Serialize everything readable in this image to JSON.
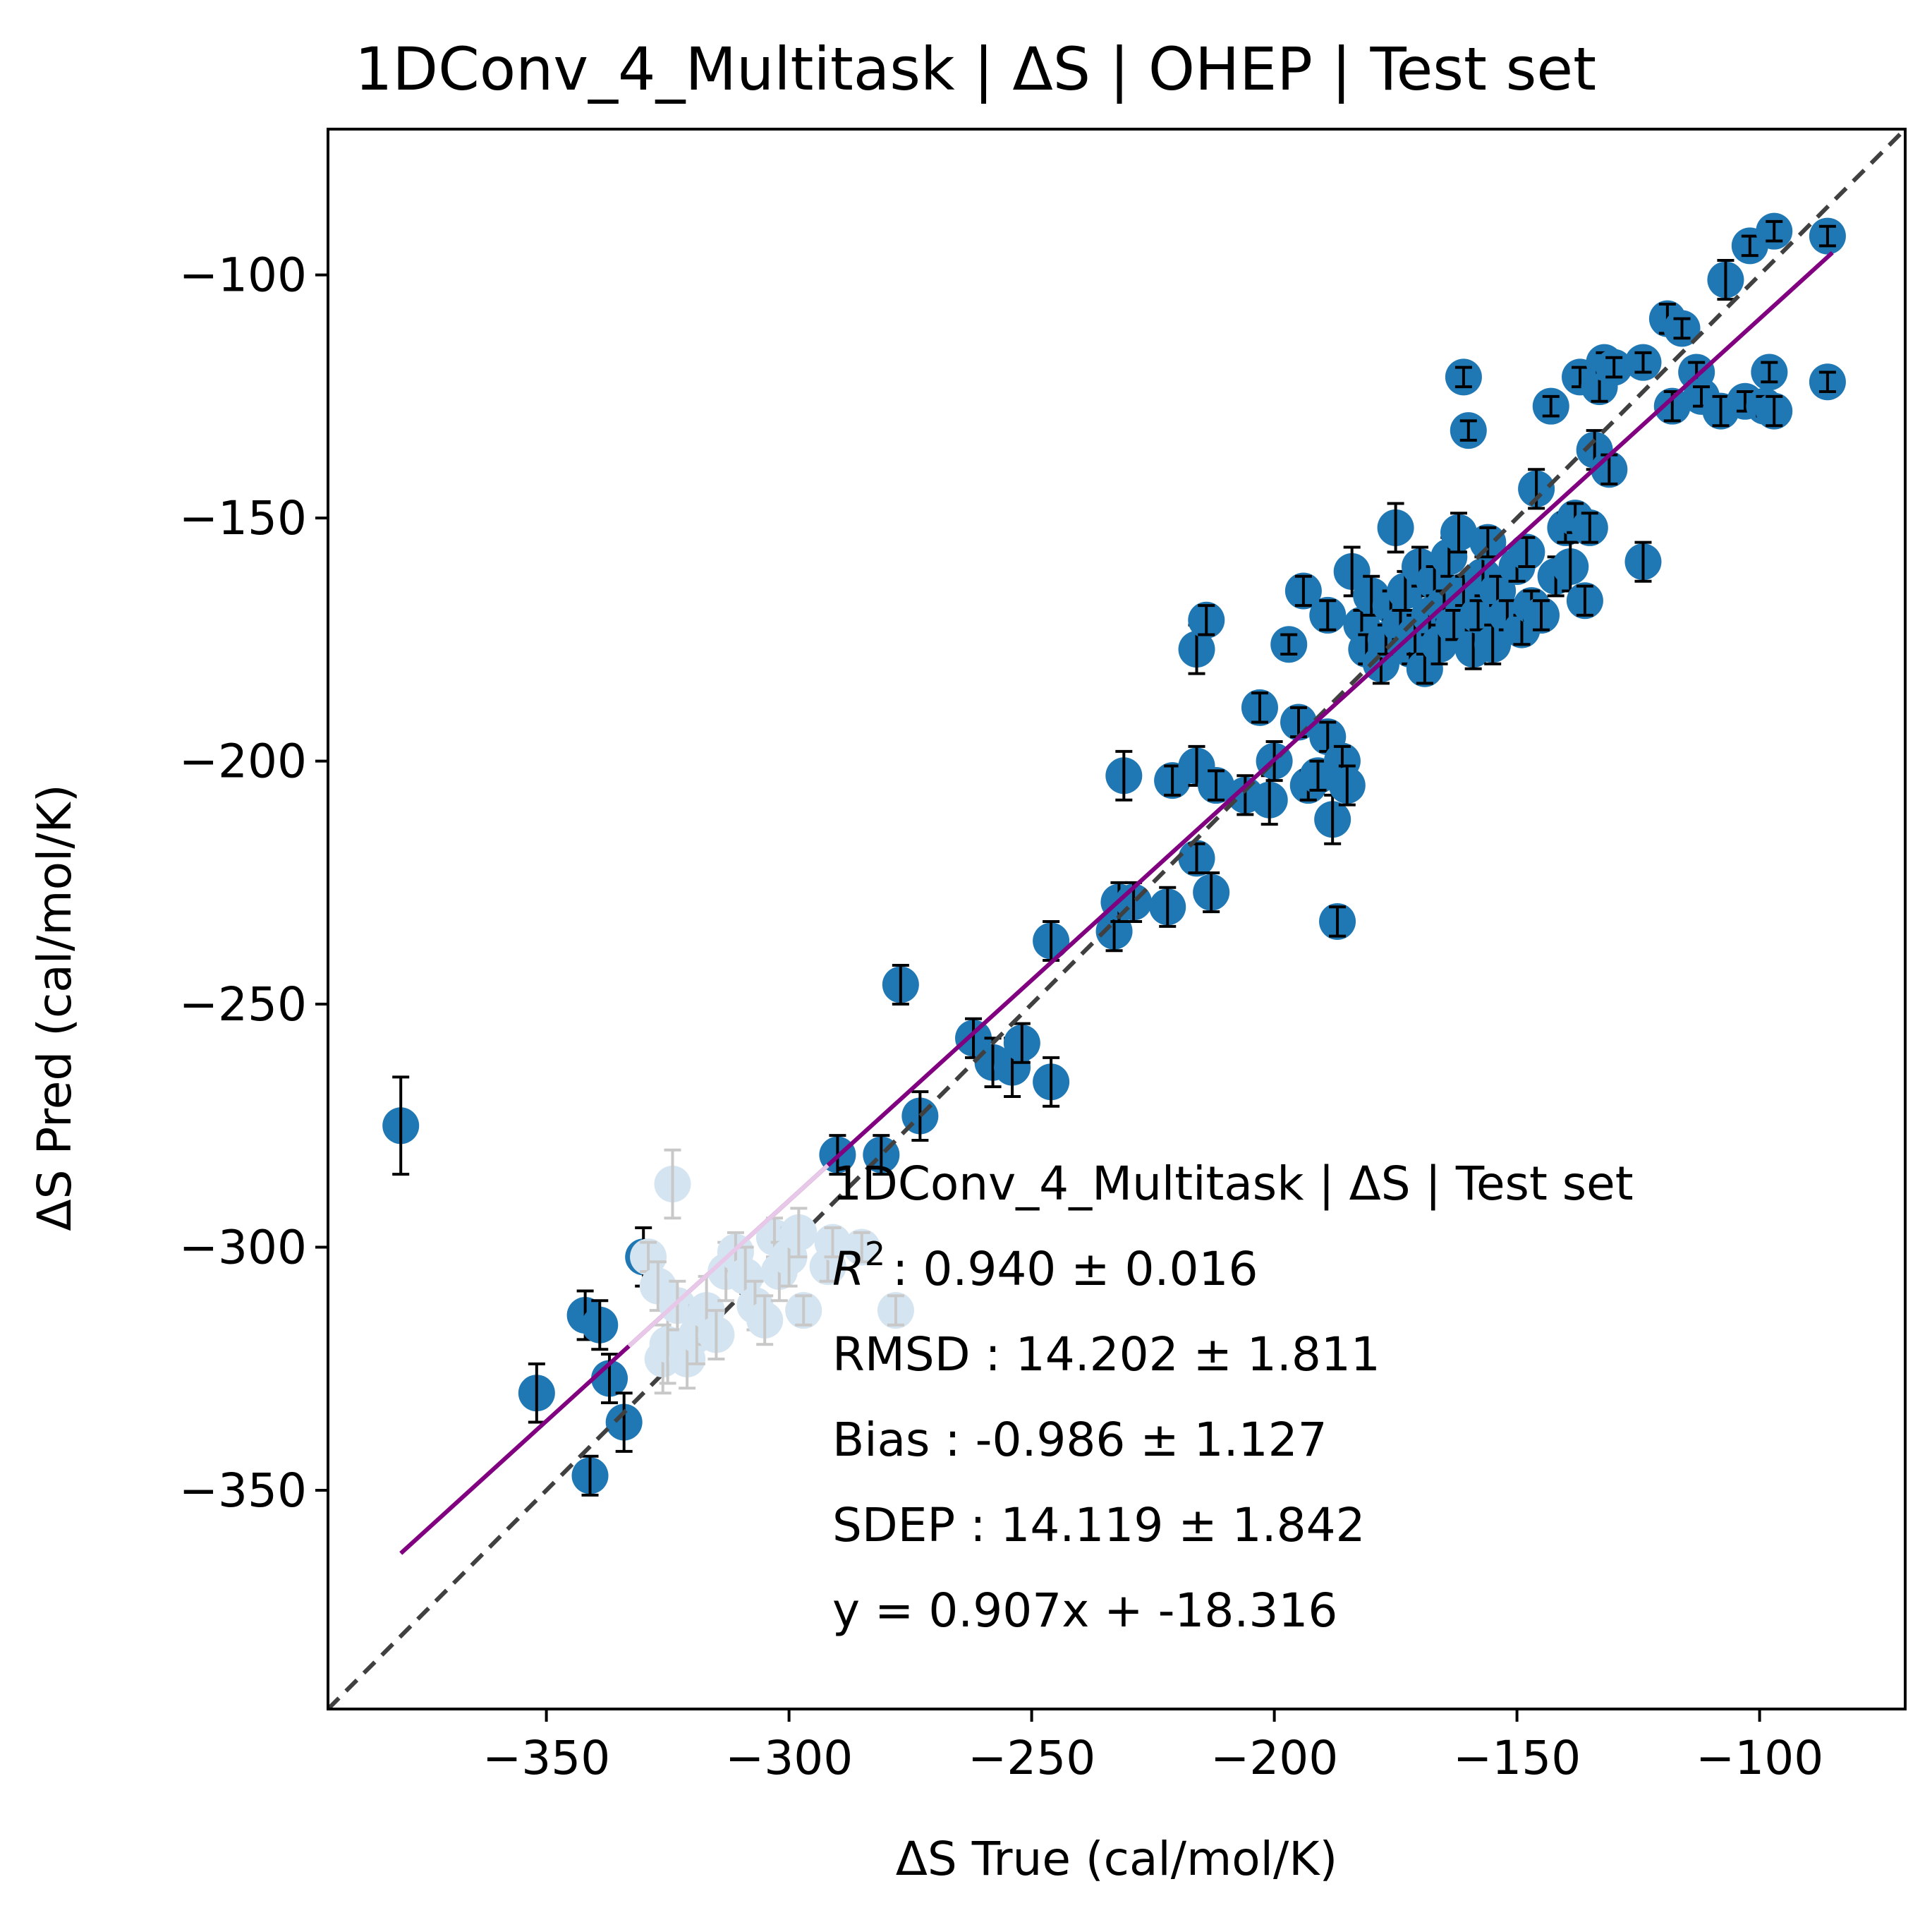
{
  "chart_data": {
    "type": "scatter",
    "title": "1DConv_4_Multitask | ΔS | OHEP | Test set",
    "xlabel": "ΔS True (cal/mol/K)",
    "ylabel": "ΔS Pred (cal/mol/K)",
    "xlim": [
      -395,
      -70
    ],
    "ylim": [
      -395,
      -70
    ],
    "xticks": [
      -350,
      -300,
      -250,
      -200,
      -150,
      -100
    ],
    "yticks": [
      -350,
      -300,
      -250,
      -200,
      -150,
      -100
    ],
    "xtick_labels": [
      "−350",
      "−300",
      "−250",
      "−200",
      "−150",
      "−100"
    ],
    "ytick_labels": [
      "−350",
      "−300",
      "−250",
      "−200",
      "−150",
      "−100"
    ],
    "grid": false,
    "colors": {
      "points": "#1f77b4",
      "points_faded": "#d4e4f0",
      "errorbars": "#000000",
      "errorbars_faded": "#c8c8c8",
      "fit_line": "#800080",
      "fit_line_faded": "#e8c8e8",
      "identity_line": "#404040"
    },
    "identity_line": {
      "style": "dashed"
    },
    "fit_line": {
      "slope": 0.907,
      "intercept": -18.316,
      "x_range": [
        -380,
        -85
      ]
    },
    "annotation_lines": [
      "1DConv_4_Multitask | ΔS | Test set",
      ": 0.940 ± 0.016",
      "RMSD : 14.202 ± 1.811",
      "Bias : -0.986 ± 1.127",
      "SDEP : 14.119 ± 1.842",
      "y = 0.907x + -18.316"
    ],
    "annotation_r2_symbol": "R",
    "annotation_r2_exponent": "2",
    "series": [
      {
        "style": "normal",
        "points": [
          [
            -380,
            -275,
            10
          ],
          [
            -352,
            -330,
            6
          ],
          [
            -342,
            -314,
            5
          ],
          [
            -341,
            -347,
            4
          ],
          [
            -339,
            -316,
            5
          ],
          [
            -337,
            -327,
            5
          ],
          [
            -334,
            -336,
            6
          ],
          [
            -330,
            -302,
            6
          ],
          [
            -290,
            -281,
            4
          ],
          [
            -281,
            -281,
            4
          ],
          [
            -277,
            -246,
            4
          ],
          [
            -273,
            -273,
            5
          ],
          [
            -262,
            -257,
            4
          ],
          [
            -258,
            -262,
            5
          ],
          [
            -254,
            -263,
            6
          ],
          [
            -252,
            -258,
            4
          ],
          [
            -246,
            -266,
            5
          ],
          [
            -246,
            -237,
            4
          ],
          [
            -233,
            -235,
            4
          ],
          [
            -232,
            -229,
            4
          ],
          [
            -231,
            -203,
            5
          ],
          [
            -229,
            -229,
            4
          ],
          [
            -222,
            -230,
            4
          ],
          [
            -221,
            -204,
            3
          ],
          [
            -216,
            -220,
            3
          ],
          [
            -216,
            -201,
            4
          ],
          [
            -216,
            -177,
            5
          ],
          [
            -214,
            -171,
            3
          ],
          [
            -213,
            -227,
            4
          ],
          [
            -212,
            -205,
            3
          ],
          [
            -206,
            -207,
            4
          ],
          [
            -203,
            -189,
            3
          ],
          [
            -201,
            -208,
            5
          ],
          [
            -200,
            -200,
            4
          ],
          [
            -197,
            -176,
            2
          ],
          [
            -195,
            -192,
            3
          ],
          [
            -194,
            -165,
            3
          ],
          [
            -193,
            -205,
            3
          ],
          [
            -191,
            -203,
            3
          ],
          [
            -189,
            -170,
            3
          ],
          [
            -189,
            -195,
            3
          ],
          [
            -188,
            -212,
            5
          ],
          [
            -187,
            -233,
            3
          ],
          [
            -186,
            -200,
            3
          ],
          [
            -185,
            -205,
            4
          ],
          [
            -184,
            -161,
            5
          ],
          [
            -182,
            -172,
            3
          ],
          [
            -181,
            -177,
            3
          ],
          [
            -180,
            -166,
            4
          ],
          [
            -178,
            -180,
            4
          ],
          [
            -177,
            -175,
            3
          ],
          [
            -176,
            -168,
            3
          ],
          [
            -175,
            -152,
            5
          ],
          [
            -174,
            -172,
            3
          ],
          [
            -173,
            -165,
            4
          ],
          [
            -172,
            -177,
            3
          ],
          [
            -171,
            -174,
            4
          ],
          [
            -170,
            -160,
            4
          ],
          [
            -169,
            -181,
            3
          ],
          [
            -168,
            -170,
            4
          ],
          [
            -167,
            -163,
            3
          ],
          [
            -166,
            -176,
            4
          ],
          [
            -165,
            -168,
            3
          ],
          [
            -164,
            -158,
            4
          ],
          [
            -163,
            -172,
            3
          ],
          [
            -162,
            -153,
            4
          ],
          [
            -161,
            -165,
            3
          ],
          [
            -161,
            -121,
            2
          ],
          [
            -160,
            -132,
            2
          ],
          [
            -159,
            -177,
            4
          ],
          [
            -158,
            -170,
            3
          ],
          [
            -157,
            -162,
            4
          ],
          [
            -156,
            -155,
            3
          ],
          [
            -155,
            -176,
            4
          ],
          [
            -154,
            -165,
            3
          ],
          [
            -152,
            -170,
            3
          ],
          [
            -150,
            -160,
            3
          ],
          [
            -149,
            -173,
            3
          ],
          [
            -148,
            -157,
            3
          ],
          [
            -147,
            -168,
            3
          ],
          [
            -146,
            -144,
            4
          ],
          [
            -145,
            -170,
            3
          ],
          [
            -143,
            -127,
            2
          ],
          [
            -142,
            -162,
            4
          ],
          [
            -140,
            -152,
            3
          ],
          [
            -139,
            -160,
            5
          ],
          [
            -138,
            -150,
            3
          ],
          [
            -137,
            -121,
            2
          ],
          [
            -136,
            -167,
            3
          ],
          [
            -135,
            -152,
            3
          ],
          [
            -134,
            -136,
            4
          ],
          [
            -133,
            -123,
            3
          ],
          [
            -132,
            -118,
            2
          ],
          [
            -131,
            -140,
            3
          ],
          [
            -130,
            -119,
            2
          ],
          [
            -124,
            -159,
            4
          ],
          [
            -124,
            -118,
            2
          ],
          [
            -119,
            -109,
            3
          ],
          [
            -118,
            -127,
            3
          ],
          [
            -116,
            -111,
            2
          ],
          [
            -113,
            -120,
            2
          ],
          [
            -112,
            -125,
            2
          ],
          [
            -108,
            -128,
            3
          ],
          [
            -107,
            -101,
            4
          ],
          [
            -103,
            -126,
            2
          ],
          [
            -102,
            -94,
            2
          ],
          [
            -99,
            -127,
            2
          ],
          [
            -98,
            -120,
            2
          ],
          [
            -97,
            -128,
            3
          ],
          [
            -97,
            -91,
            2
          ],
          [
            -86,
            -92,
            2
          ],
          [
            -86,
            -122,
            2
          ]
        ]
      },
      {
        "style": "faded",
        "points": [
          [
            -329,
            -302,
            3
          ],
          [
            -327,
            -308,
            5
          ],
          [
            -326,
            -323,
            7
          ],
          [
            -325,
            -320,
            8
          ],
          [
            -324,
            -287,
            7
          ],
          [
            -323,
            -312,
            5
          ],
          [
            -321,
            -323,
            6
          ],
          [
            -319,
            -318,
            6
          ],
          [
            -317,
            -313,
            7
          ],
          [
            -315,
            -318,
            5
          ],
          [
            -313,
            -305,
            6
          ],
          [
            -311,
            -301,
            4
          ],
          [
            -309,
            -306,
            6
          ],
          [
            -307,
            -312,
            5
          ],
          [
            -305,
            -315,
            5
          ],
          [
            -303,
            -298,
            4
          ],
          [
            -302,
            -305,
            6
          ],
          [
            -300,
            -302,
            6
          ],
          [
            -298,
            -297,
            5
          ],
          [
            -297,
            -313,
            3
          ],
          [
            -292,
            -304,
            3
          ],
          [
            -291,
            -299,
            3
          ],
          [
            -285,
            -300,
            3
          ],
          [
            -278,
            -313,
            3
          ]
        ]
      }
    ]
  }
}
